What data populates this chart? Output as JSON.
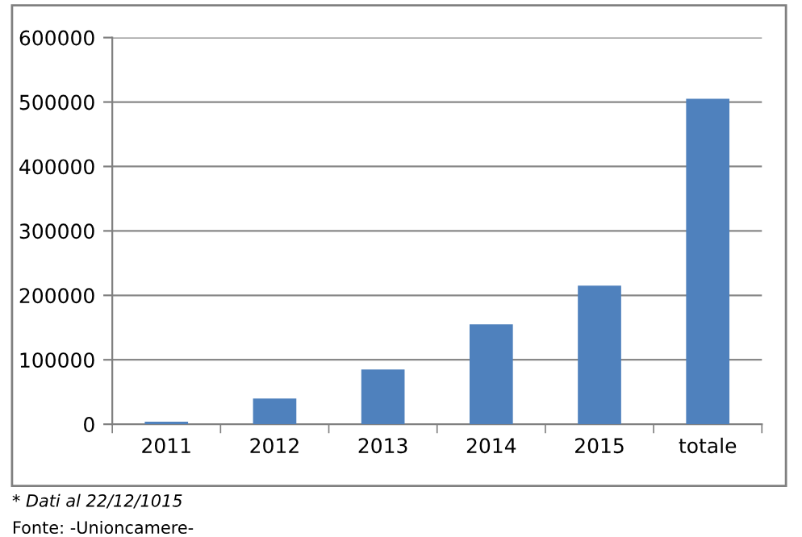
{
  "chart_data": {
    "type": "bar",
    "categories": [
      "2011",
      "2012",
      "2013",
      "2014",
      "2015",
      "totale"
    ],
    "values": [
      4000,
      40000,
      85000,
      155000,
      215000,
      505000
    ],
    "color": "#4f81bd",
    "ylim": [
      0,
      600000
    ],
    "yticks": [
      0,
      100000,
      200000,
      300000,
      400000,
      500000,
      600000
    ],
    "grid": "y",
    "annotations": [
      "* Dati al 22/12/1015",
      "Fonte: -Unioncamere-"
    ]
  }
}
